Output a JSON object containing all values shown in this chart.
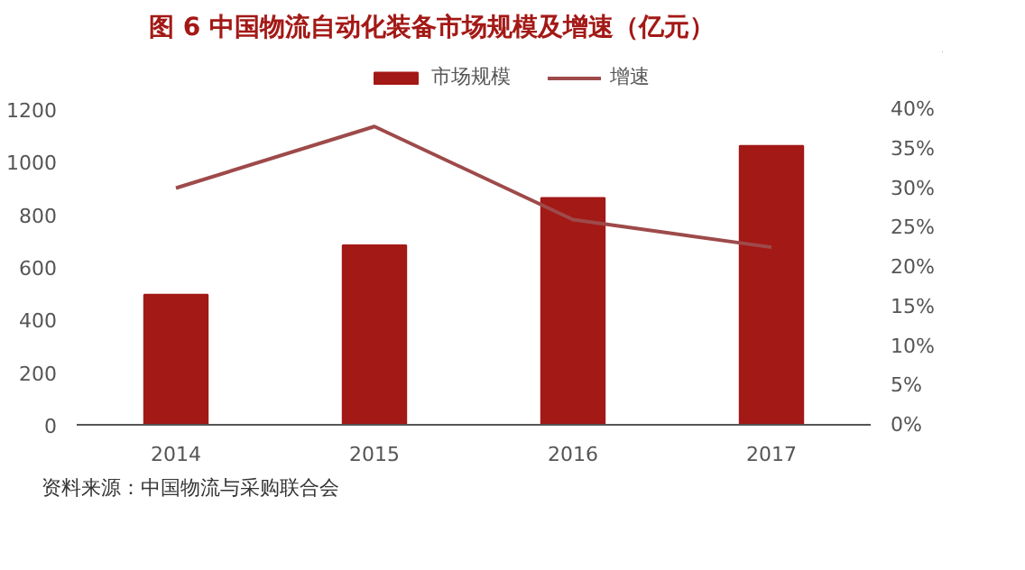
{
  "chart_data": {
    "type": "bar",
    "title": "图 6  中国物流自动化装备市场规模及增速（亿元）",
    "categories": [
      "2014",
      "2015",
      "2016",
      "2017"
    ],
    "series": [
      {
        "name": "市场规模",
        "color": "#a31916",
        "values": [
          495,
          682,
          862,
          1060
        ]
      },
      {
        "name": "增速",
        "type": "line",
        "axis": "y2",
        "color": "#9e4a4a",
        "values": [
          30,
          37.8,
          26,
          22.5
        ]
      }
    ],
    "ylim": [
      0,
      1200
    ],
    "yticks": [
      0,
      200,
      400,
      600,
      800,
      1000,
      1200
    ],
    "y2lim": [
      0,
      40
    ],
    "y2ticks": [
      {
        "value": 0,
        "label": "0%"
      },
      {
        "value": 5,
        "label": "5%"
      },
      {
        "value": 10,
        "label": "10%"
      },
      {
        "value": 15,
        "label": "15%"
      },
      {
        "value": 20,
        "label": "20%"
      },
      {
        "value": 25,
        "label": "25%"
      },
      {
        "value": 30,
        "label": "30%"
      },
      {
        "value": 35,
        "label": "35%"
      },
      {
        "value": 40,
        "label": "40%"
      }
    ],
    "legend": "top",
    "grid": false,
    "annotations": [
      "资料来源：中国物流与采购联合会"
    ]
  }
}
